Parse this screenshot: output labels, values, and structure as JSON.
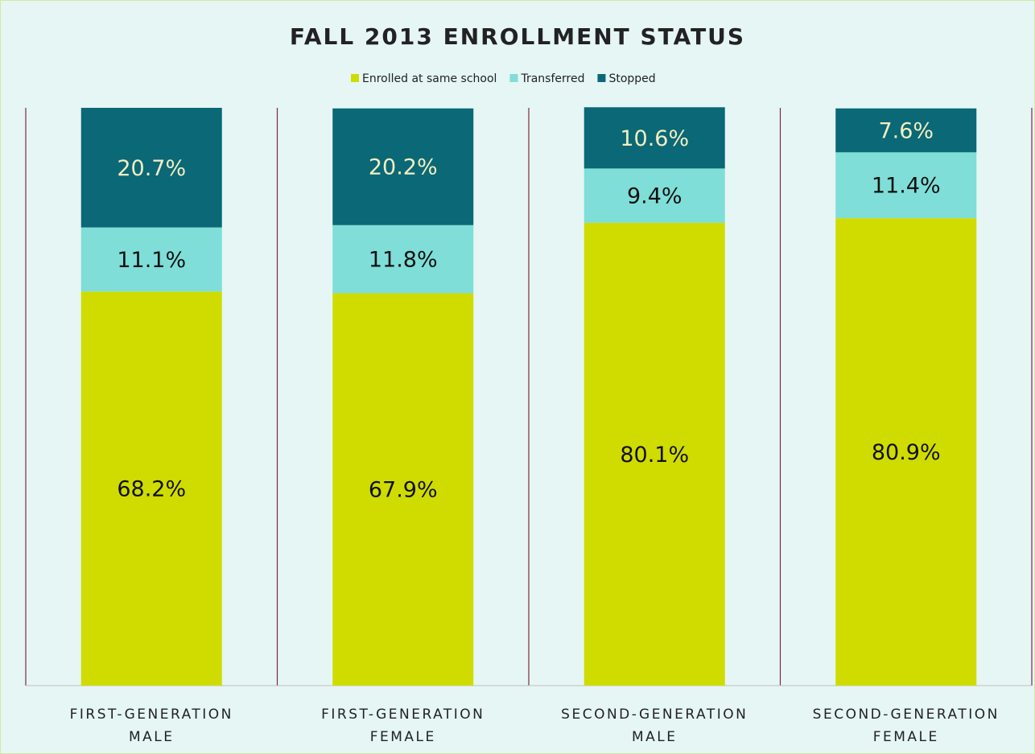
{
  "chart_data": {
    "type": "stacked_bar",
    "title": "FALL 2013 ENROLLMENT STATUS",
    "categories": [
      "FIRST-GENERATION MALE",
      "FIRST-GENERATION FEMALE",
      "SECOND-GENERATION MALE",
      "SECOND-GENERATION FEMALE"
    ],
    "series": [
      {
        "name": "Enrolled at same school",
        "color": "#d0dc00",
        "label_color": "#111111",
        "values": [
          68.2,
          67.9,
          80.1,
          80.9
        ],
        "value_labels": [
          "68.2%",
          "67.9%",
          "80.1%",
          "80.9%"
        ]
      },
      {
        "name": "Transferred",
        "color": "#7fded8",
        "label_color": "#111111",
        "values": [
          11.1,
          11.8,
          9.4,
          11.4
        ],
        "value_labels": [
          "11.1%",
          "11.8%",
          "9.4%",
          "11.4%"
        ]
      },
      {
        "name": "Stopped",
        "color": "#0a6877",
        "label_color": "#f3eec0",
        "values": [
          20.7,
          20.2,
          10.6,
          7.6
        ],
        "value_labels": [
          "20.7%",
          "20.2%",
          "10.6%",
          "7.6%"
        ]
      }
    ],
    "ylim": [
      0,
      100
    ],
    "legend": "top"
  }
}
